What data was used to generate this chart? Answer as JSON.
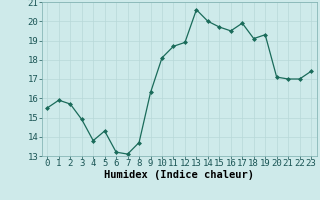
{
  "x": [
    0,
    1,
    2,
    3,
    4,
    5,
    6,
    7,
    8,
    9,
    10,
    11,
    12,
    13,
    14,
    15,
    16,
    17,
    18,
    19,
    20,
    21,
    22,
    23
  ],
  "y": [
    15.5,
    15.9,
    15.7,
    14.9,
    13.8,
    14.3,
    13.2,
    13.1,
    13.7,
    16.3,
    18.1,
    18.7,
    18.9,
    20.6,
    20.0,
    19.7,
    19.5,
    19.9,
    19.1,
    19.3,
    17.1,
    17.0,
    17.0,
    17.4
  ],
  "xlabel": "Humidex (Indice chaleur)",
  "ylim": [
    13,
    21
  ],
  "xlim_min": -0.5,
  "xlim_max": 23.5,
  "yticks": [
    13,
    14,
    15,
    16,
    17,
    18,
    19,
    20,
    21
  ],
  "xticks": [
    0,
    1,
    2,
    3,
    4,
    5,
    6,
    7,
    8,
    9,
    10,
    11,
    12,
    13,
    14,
    15,
    16,
    17,
    18,
    19,
    20,
    21,
    22,
    23
  ],
  "line_color": "#1a6b5a",
  "marker": "D",
  "marker_size": 2.0,
  "bg_color": "#ceeaea",
  "grid_color": "#b8d8d8",
  "xlabel_fontsize": 7.5,
  "tick_fontsize": 6.5
}
